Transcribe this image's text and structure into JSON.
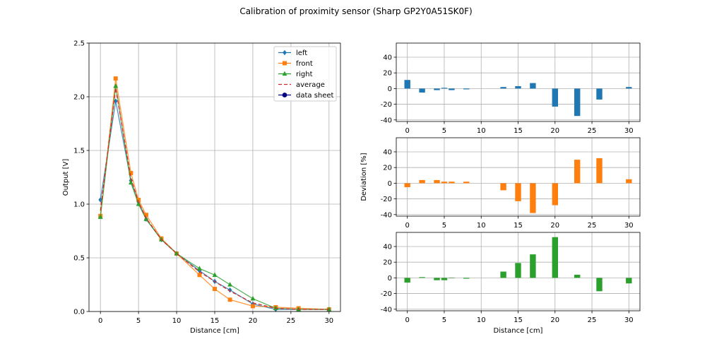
{
  "suptitle": "Calibration of proximity sensor (Sharp GP2Y0A51SK0F)",
  "chart_data": [
    {
      "type": "line",
      "xlabel": "Distance [cm]",
      "ylabel": "Output [V]",
      "xlim": [
        -1.5,
        31.5
      ],
      "ylim": [
        0,
        2.5
      ],
      "xticks": [
        0,
        5,
        10,
        15,
        20,
        25,
        30
      ],
      "yticks": [
        0.0,
        0.5,
        1.0,
        1.5,
        2.0,
        2.5
      ],
      "ytick_labels": [
        "0.0",
        "0.5",
        "1.0",
        "1.5",
        "2.0",
        "2.5"
      ],
      "grid": true,
      "legend_position": "top-right",
      "series": [
        {
          "name": "left",
          "color": "#1f77b4",
          "marker": "diamond",
          "style": "solid",
          "x": [
            0,
            2,
            4,
            5,
            6,
            8,
            10,
            13,
            15,
            17,
            20,
            23,
            26,
            30
          ],
          "y": [
            1.04,
            1.96,
            1.22,
            1.02,
            0.86,
            0.67,
            0.54,
            0.38,
            0.28,
            0.2,
            0.07,
            0.02,
            0.02,
            0.02
          ]
        },
        {
          "name": "front",
          "color": "#ff7f0e",
          "marker": "square",
          "style": "solid",
          "x": [
            0,
            2,
            4,
            5,
            6,
            8,
            10,
            13,
            15,
            17,
            20,
            23,
            26,
            30
          ],
          "y": [
            0.89,
            2.17,
            1.29,
            1.04,
            0.9,
            0.68,
            0.54,
            0.34,
            0.21,
            0.11,
            0.05,
            0.04,
            0.03,
            0.02
          ]
        },
        {
          "name": "right",
          "color": "#2ca02c",
          "marker": "triangle",
          "style": "solid",
          "x": [
            0,
            2,
            4,
            5,
            6,
            8,
            10,
            13,
            15,
            17,
            20,
            23,
            26,
            30
          ],
          "y": [
            0.88,
            2.1,
            1.2,
            1.0,
            0.86,
            0.67,
            0.54,
            0.4,
            0.34,
            0.25,
            0.12,
            0.03,
            0.02,
            0.02
          ]
        },
        {
          "name": "average",
          "color": "#d62728",
          "marker": "none",
          "style": "dashed",
          "x": [
            0,
            2,
            4,
            5,
            6,
            8,
            10,
            13,
            15,
            17,
            20,
            23,
            26,
            30
          ],
          "y": [
            0.94,
            2.08,
            1.24,
            1.02,
            0.87,
            0.67,
            0.54,
            0.37,
            0.28,
            0.19,
            0.08,
            0.03,
            0.02,
            0.02
          ]
        },
        {
          "name": "data sheet",
          "color": "#000080",
          "marker": "circle",
          "style": "solid",
          "x": [],
          "y": []
        }
      ]
    },
    {
      "type": "bar",
      "xlim": [
        -1.5,
        31.5
      ],
      "ylim": [
        -42,
        58
      ],
      "xticks": [
        0,
        5,
        10,
        15,
        20,
        25,
        30
      ],
      "yticks": [
        -40,
        -20,
        0,
        20,
        40
      ],
      "grid": true,
      "color": "#1f77b4",
      "x": [
        0,
        2,
        4,
        5,
        6,
        8,
        13,
        15,
        17,
        20,
        23,
        26,
        30
      ],
      "values": [
        11,
        -5,
        -2,
        1,
        -2,
        -1,
        2,
        3,
        7,
        -23,
        -35,
        -14,
        2
      ]
    },
    {
      "type": "bar",
      "ylabel": "Deviation [%]",
      "xlim": [
        -1.5,
        31.5
      ],
      "ylim": [
        -42,
        58
      ],
      "xticks": [
        0,
        5,
        10,
        15,
        20,
        25,
        30
      ],
      "yticks": [
        -40,
        -20,
        0,
        20,
        40
      ],
      "grid": true,
      "color": "#ff7f0e",
      "x": [
        0,
        2,
        4,
        5,
        6,
        8,
        13,
        15,
        17,
        20,
        23,
        26,
        30
      ],
      "values": [
        -5,
        4,
        4,
        2,
        2,
        2,
        -9,
        -23,
        -38,
        -28,
        30,
        32,
        5
      ]
    },
    {
      "type": "bar",
      "xlabel": "Distance [cm]",
      "xlim": [
        -1.5,
        31.5
      ],
      "ylim": [
        -42,
        58
      ],
      "xticks": [
        0,
        5,
        10,
        15,
        20,
        25,
        30
      ],
      "yticks": [
        -40,
        -20,
        0,
        20,
        40
      ],
      "grid": true,
      "color": "#2ca02c",
      "x": [
        0,
        2,
        4,
        5,
        6,
        8,
        13,
        15,
        17,
        20,
        23,
        26,
        30
      ],
      "values": [
        -6,
        1,
        -3,
        -3,
        0,
        -1,
        8,
        19,
        30,
        52,
        4,
        -17,
        -7
      ]
    }
  ]
}
